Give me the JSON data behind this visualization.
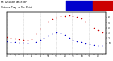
{
  "title_left": "Milwaukee Weather  Outdoor Temp vs Dew Point",
  "background_color": "#ffffff",
  "grid_color": "#888888",
  "xlim": [
    0,
    24
  ],
  "ylim": [
    -10,
    70
  ],
  "temp_x": [
    0,
    1,
    2,
    3,
    4,
    5,
    6,
    7,
    8,
    9,
    10,
    11,
    12,
    13,
    14,
    15,
    16,
    17,
    18,
    19,
    20,
    21,
    22,
    23
  ],
  "temp_y": [
    22,
    20,
    19,
    18,
    17,
    17,
    18,
    28,
    38,
    46,
    52,
    57,
    60,
    62,
    63,
    64,
    63,
    61,
    58,
    52,
    46,
    40,
    35,
    31
  ],
  "dew_x": [
    0,
    1,
    2,
    3,
    4,
    5,
    6,
    7,
    8,
    9,
    10,
    11,
    12,
    13,
    14,
    15,
    16,
    17,
    18,
    19,
    20,
    21,
    22,
    23
  ],
  "dew_y": [
    14,
    13,
    12,
    11,
    11,
    10,
    11,
    13,
    16,
    20,
    24,
    28,
    32,
    30,
    26,
    20,
    16,
    14,
    12,
    10,
    8,
    7,
    6,
    5
  ],
  "temp_color": "#cc0000",
  "dew_color": "#0000cc",
  "title_bar_blue": "#0000cc",
  "title_bar_red": "#cc0000",
  "ytick_values": [
    10,
    20,
    30,
    40,
    50,
    60
  ],
  "xtick_values": [
    0,
    1,
    2,
    3,
    4,
    5,
    6,
    7,
    8,
    9,
    10,
    11,
    12,
    13,
    14,
    15,
    16,
    17,
    18,
    19,
    20,
    21,
    22,
    23
  ],
  "grid_x_positions": [
    0,
    4,
    8,
    12,
    16,
    20,
    24
  ],
  "tick_color": "#000000",
  "dot_size": 1.2,
  "title_fontsize": 2.5,
  "tick_fontsize": 2.2
}
